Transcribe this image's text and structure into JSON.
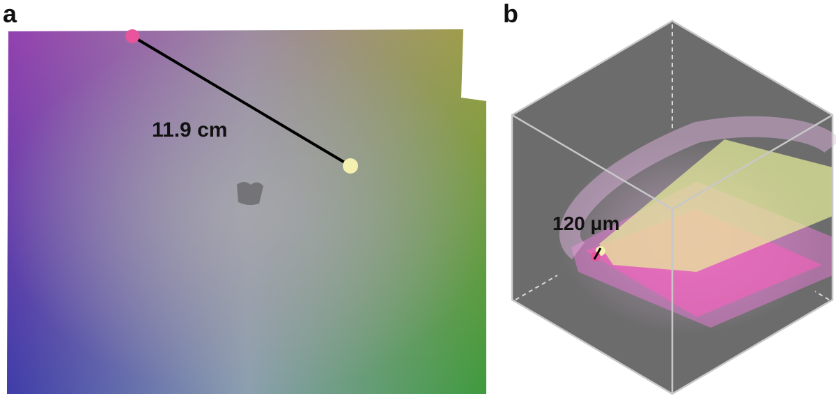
{
  "panels": [
    {
      "label": "a",
      "annotation": "11.9 cm"
    },
    {
      "label": "b",
      "annotation": "120 μm"
    }
  ]
}
